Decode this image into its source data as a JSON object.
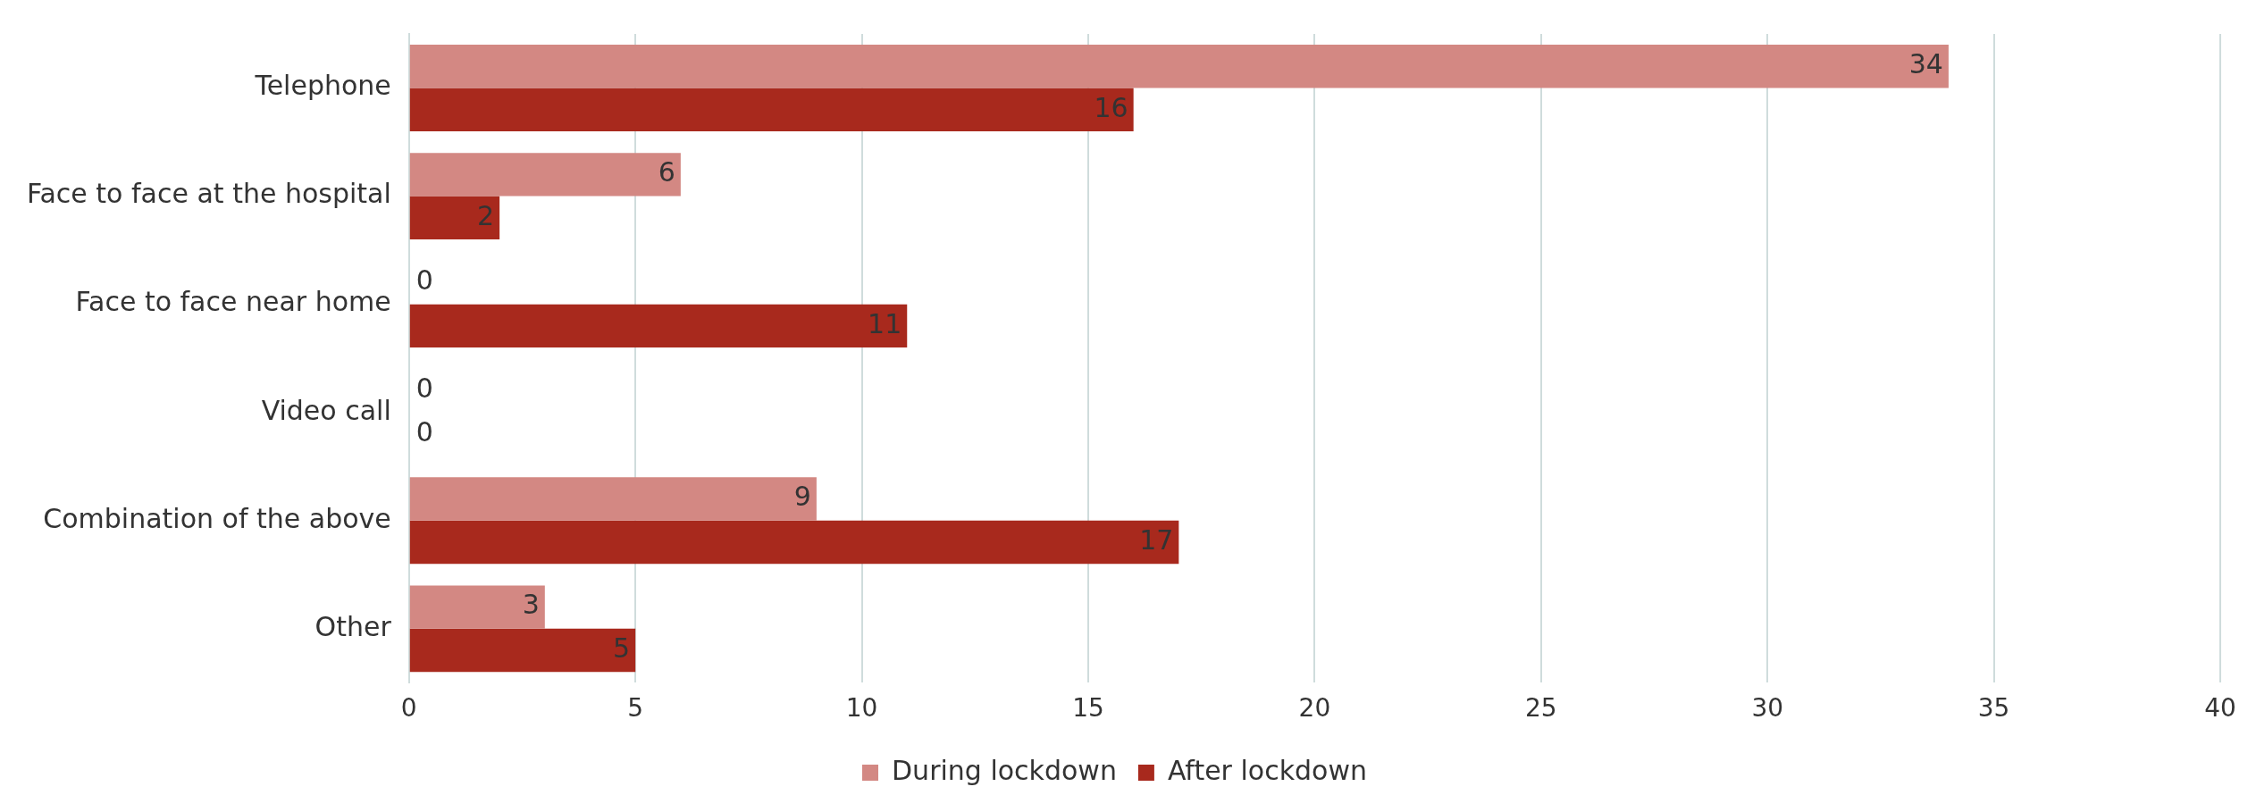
{
  "chart_data": {
    "type": "bar",
    "orientation": "horizontal",
    "categories": [
      "Telephone",
      "Face to face at the hospital",
      "Face to face near home",
      "Video call",
      "Combination of the above",
      "Other"
    ],
    "series": [
      {
        "name": "During lockdown",
        "color": "#d38883",
        "values": [
          34,
          6,
          0,
          0,
          9,
          3
        ]
      },
      {
        "name": "After lockdown",
        "color": "#a8291d",
        "values": [
          16,
          2,
          11,
          0,
          17,
          5
        ]
      }
    ],
    "xlim": [
      0,
      40
    ],
    "xticks": [
      0,
      5,
      10,
      15,
      20,
      25,
      30,
      35,
      40
    ],
    "grid": "x",
    "legend": "bottom",
    "data_labels": true
  }
}
